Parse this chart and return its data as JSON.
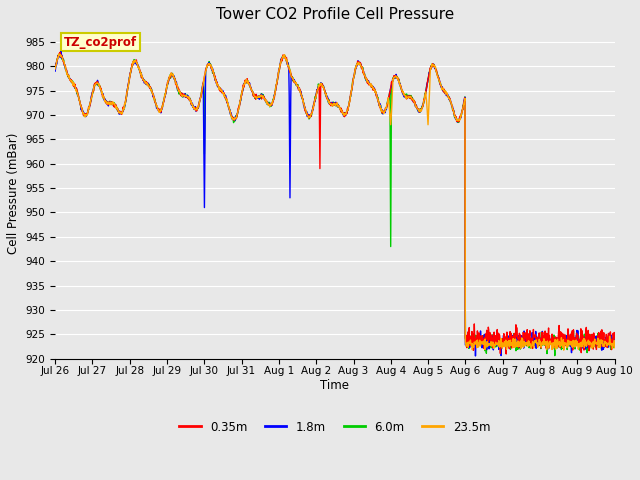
{
  "title": "Tower CO2 Profile Cell Pressure",
  "ylabel": "Cell Pressure (mBar)",
  "xlabel": "Time",
  "annotation_text": "TZ_co2prof",
  "annotation_color": "#CC0000",
  "annotation_bg": "#FFFFCC",
  "annotation_border": "#CCCC00",
  "ylim": [
    920,
    988
  ],
  "yticks": [
    920,
    925,
    930,
    935,
    940,
    945,
    950,
    955,
    960,
    965,
    970,
    975,
    980,
    985
  ],
  "bg_color": "#E8E8E8",
  "plot_bg": "#E8E8E8",
  "grid_color": "#FFFFFF",
  "colors": {
    "0.35m": "#FF0000",
    "1.8m": "#0000FF",
    "6.0m": "#00CC00",
    "23.5m": "#FFA500"
  },
  "legend_labels": [
    "0.35m",
    "1.8m",
    "6.0m",
    "23.5m"
  ],
  "day_labels": [
    "Jul 26",
    "Jul 27",
    "Jul 28",
    "Jul 29",
    "Jul 30",
    "Jul 31",
    "Aug 1",
    "Aug 2",
    "Aug 3",
    "Aug 4",
    "Aug 5",
    "Aug 6",
    "Aug 7",
    "Aug 8",
    "Aug 9",
    "Aug 10"
  ]
}
